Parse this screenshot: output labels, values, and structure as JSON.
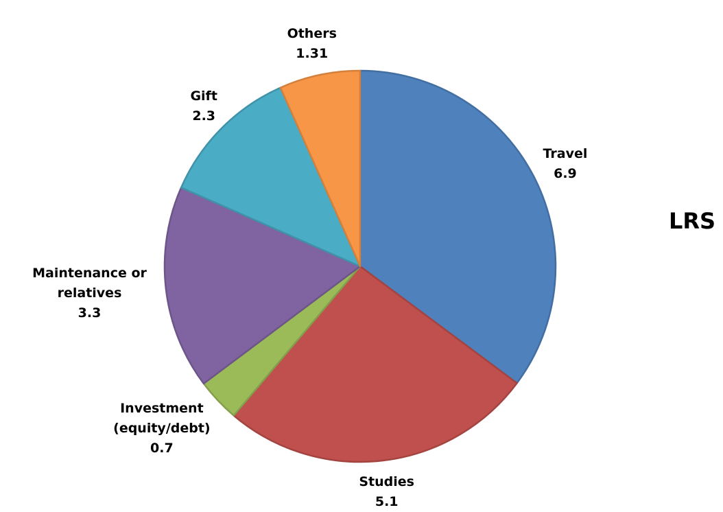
{
  "chart_data": {
    "type": "pie",
    "title": "LRS",
    "categories": [
      "Travel",
      "Studies",
      "Investment (equity/debt)",
      "Maintenance or relatives",
      "Gift",
      "Others"
    ],
    "values": [
      6.9,
      5.1,
      0.7,
      3.3,
      2.3,
      1.31
    ],
    "colors": [
      "#4f81bd",
      "#c0504d",
      "#9bbb59",
      "#8064a2",
      "#4bacc6",
      "#f79646"
    ]
  }
}
